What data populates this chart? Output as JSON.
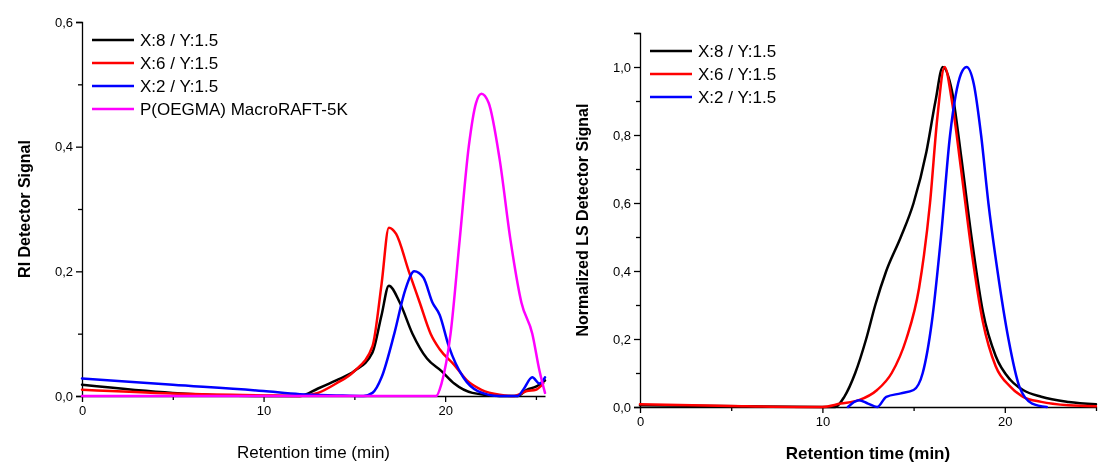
{
  "chart_data": [
    {
      "type": "line",
      "xlabel": "Retention time (min)",
      "ylabel": "RI Detector Signal",
      "xlim": [
        0,
        25.5
      ],
      "ylim": [
        0,
        0.6
      ],
      "xticks": [
        0,
        {
          "value": 5,
          "label": null
        },
        10,
        {
          "value": 15,
          "label": null
        },
        20,
        {
          "value": 25,
          "label": null
        }
      ],
      "yticks": [
        {
          "value": 0,
          "label": "0,0"
        },
        {
          "value": 0.1,
          "label": null
        },
        {
          "value": 0.2,
          "label": "0,2"
        },
        {
          "value": 0.3,
          "label": null
        },
        {
          "value": 0.4,
          "label": "0,4"
        },
        {
          "value": 0.5,
          "label": null
        },
        {
          "value": 0.6,
          "label": "0,6"
        }
      ],
      "legend": "top left",
      "grid": false,
      "marker": "none",
      "line_style": "solid",
      "series": [
        {
          "name": "X:8 / Y:1.5",
          "color": "#000000",
          "x": [
            0,
            5,
            10,
            12,
            13,
            14,
            15,
            16,
            16.5,
            16.9,
            17.5,
            18.2,
            19,
            19.8,
            20.5,
            21.5,
            23,
            24,
            24.5,
            25,
            25.5
          ],
          "values": [
            0.018,
            0.005,
            0,
            0,
            0.012,
            0.025,
            0.04,
            0.07,
            0.13,
            0.177,
            0.15,
            0.1,
            0.06,
            0.04,
            0.02,
            0.005,
            0,
            0,
            0.01,
            0.015,
            0.025
          ]
        },
        {
          "name": "X:6 / Y:1.5",
          "color": "#ff0000",
          "x": [
            0,
            5,
            10,
            12,
            13,
            14,
            15,
            16,
            16.5,
            16.9,
            17.3,
            18,
            18.6,
            19.2,
            19.7,
            20.5,
            21.2,
            22,
            23,
            23.8,
            24.5,
            25,
            25.4
          ],
          "values": [
            0.01,
            0.004,
            0.001,
            0,
            0.005,
            0.02,
            0.04,
            0.08,
            0.18,
            0.27,
            0.26,
            0.2,
            0.15,
            0.1,
            0.075,
            0.05,
            0.025,
            0.01,
            0.002,
            0,
            0.008,
            0.01,
            0.02
          ]
        },
        {
          "name": "X:2 / Y:1.5",
          "color": "#0000ff",
          "x": [
            0,
            5,
            10,
            12,
            14,
            15.5,
            16,
            16.5,
            17.2,
            17.8,
            18.3,
            18.8,
            19.3,
            19.7,
            20.2,
            21,
            21.8,
            23,
            24,
            24.3,
            24.8,
            25.2,
            25.5
          ],
          "values": [
            0.028,
            0.018,
            0.008,
            0.003,
            0.001,
            0,
            0.005,
            0.03,
            0.1,
            0.17,
            0.2,
            0.19,
            0.15,
            0.13,
            0.08,
            0.03,
            0.008,
            0,
            0,
            0.01,
            0.03,
            0.02,
            0.03
          ]
        },
        {
          "name": "P(OEGMA) MacroRAFT-5K",
          "color": "#ff00ff",
          "x": [
            0,
            19.5,
            19.8,
            20.3,
            20.8,
            21.3,
            21.7,
            22,
            22.4,
            23,
            23.6,
            24.2,
            24.8,
            25.2,
            25.5
          ],
          "values": [
            0,
            0,
            0.02,
            0.1,
            0.25,
            0.4,
            0.47,
            0.485,
            0.47,
            0.38,
            0.25,
            0.15,
            0.1,
            0.04,
            0.005
          ]
        }
      ]
    },
    {
      "type": "line",
      "xlabel": "Retention time (min)",
      "ylabel": "Normalized LS Detector Signal",
      "xlim": [
        0,
        25
      ],
      "ylim": [
        0,
        1.1
      ],
      "xticks": [
        0,
        {
          "value": 5,
          "label": null
        },
        10,
        {
          "value": 15,
          "label": null
        },
        20,
        {
          "value": 25,
          "label": null
        }
      ],
      "yticks": [
        {
          "value": 0,
          "label": "0,0"
        },
        {
          "value": 0.1,
          "label": null
        },
        {
          "value": 0.2,
          "label": "0,2"
        },
        {
          "value": 0.3,
          "label": null
        },
        {
          "value": 0.4,
          "label": "0,4"
        },
        {
          "value": 0.5,
          "label": null
        },
        {
          "value": 0.6,
          "label": "0,6"
        },
        {
          "value": 0.7,
          "label": null
        },
        {
          "value": 0.8,
          "label": "0,8"
        },
        {
          "value": 0.9,
          "label": null
        },
        {
          "value": 1,
          "label": "1,0"
        },
        {
          "value": 1.1,
          "label": null
        }
      ],
      "legend": "top left",
      "grid": false,
      "marker": "none",
      "line_style": "solid",
      "series": [
        {
          "name": "X:8 / Y:1.5",
          "color": "#000000",
          "x": [
            0,
            10,
            10.7,
            11.2,
            11.8,
            12.4,
            12.9,
            13.5,
            14.3,
            15,
            15.7,
            16.2,
            16.6,
            17.1,
            17.6,
            18.2,
            18.8,
            19.5,
            20.3,
            21,
            22,
            23.5,
            25
          ],
          "values": [
            0.005,
            0,
            0,
            0.03,
            0.1,
            0.2,
            0.3,
            0.4,
            0.5,
            0.6,
            0.75,
            0.9,
            1.0,
            0.93,
            0.74,
            0.49,
            0.28,
            0.15,
            0.08,
            0.05,
            0.03,
            0.015,
            0.008
          ]
        },
        {
          "name": "X:6 / Y:1.5",
          "color": "#ff0000",
          "x": [
            0,
            5,
            10,
            11,
            12,
            13,
            13.8,
            14.6,
            15.3,
            15.9,
            16.3,
            16.7,
            17.1,
            17.6,
            18.2,
            18.8,
            19.5,
            20.3,
            21,
            22,
            23.5,
            25
          ],
          "values": [
            0.008,
            0.003,
            0,
            0.01,
            0.02,
            0.05,
            0.1,
            0.2,
            0.35,
            0.6,
            0.85,
            1.0,
            0.9,
            0.7,
            0.45,
            0.25,
            0.12,
            0.06,
            0.03,
            0.015,
            0.005,
            0.002
          ]
        },
        {
          "name": "X:2 / Y:1.5",
          "color": "#0000ff",
          "x": [
            11.4,
            12,
            12.5,
            13,
            13.5,
            14.3,
            15,
            15.5,
            16,
            16.5,
            17,
            17.6,
            17.9,
            18.3,
            18.7,
            19.1,
            19.6,
            20.2,
            20.8,
            21.5,
            22.3
          ],
          "values": [
            0,
            0.02,
            0.01,
            0,
            0.03,
            0.04,
            0.05,
            0.1,
            0.25,
            0.5,
            0.8,
            0.98,
            1.0,
            0.95,
            0.8,
            0.6,
            0.4,
            0.2,
            0.06,
            0.01,
            0
          ]
        }
      ]
    }
  ]
}
